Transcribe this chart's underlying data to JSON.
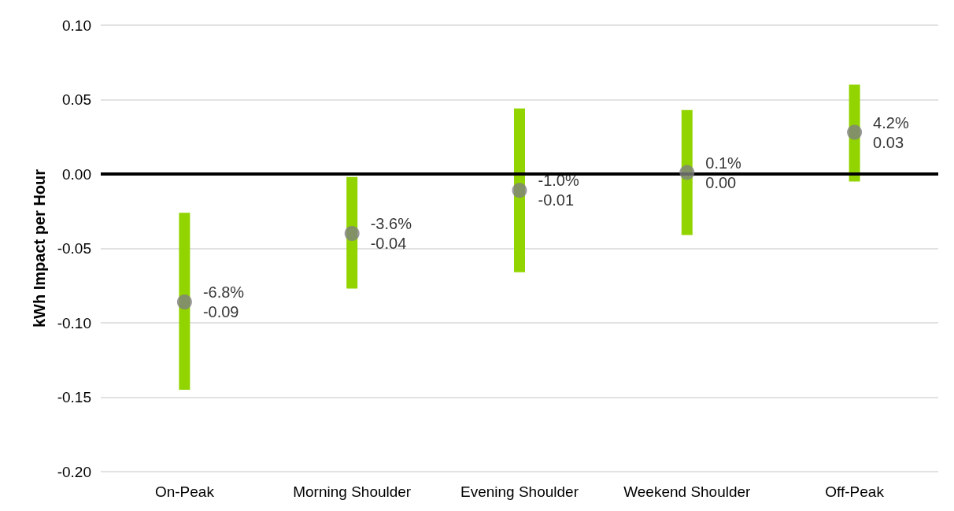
{
  "chart_data": {
    "type": "scatter",
    "ylabel": "kWh Impact per Hour",
    "categories": [
      "On-Peak",
      "Morning Shoulder",
      "Evening Shoulder",
      "Weekend Shoulder",
      "Off-Peak"
    ],
    "series": [
      {
        "color": "#808080",
        "values": [
          -0.086,
          -0.04,
          -0.011,
          0.001,
          0.028
        ],
        "errors": [
          [
            -0.145,
            -0.026
          ],
          [
            -0.077,
            -0.002
          ],
          [
            -0.066,
            0.044
          ],
          [
            -0.041,
            0.043
          ],
          [
            -0.005,
            0.06
          ]
        ],
        "value_labels": [
          "-6.8%\n-0.09",
          "-3.6%\n-0.04",
          "-1.0%\n-0.01",
          "0.1%\n0.00",
          "4.2%\n0.03"
        ]
      }
    ],
    "ylim": [
      -0.2,
      0.1
    ],
    "yticks": [
      {
        "value": -0.2,
        "label": "-0.20"
      },
      {
        "value": -0.15,
        "label": "-0.15"
      },
      {
        "value": -0.1,
        "label": "-0.10"
      },
      {
        "value": -0.05,
        "label": "-0.05"
      },
      {
        "value": 0,
        "label": "0.00"
      },
      {
        "value": 0.05,
        "label": "0.05"
      },
      {
        "value": 0.1,
        "label": "0.10"
      }
    ],
    "ref_lines": [
      {
        "axis": "y",
        "value": 0,
        "color": "#000000"
      }
    ],
    "grid": "y",
    "marker": "circle"
  }
}
